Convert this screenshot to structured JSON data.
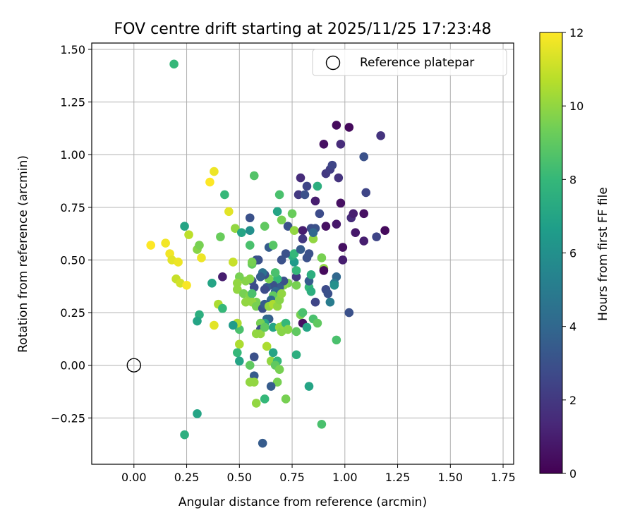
{
  "chart_data": {
    "type": "scatter",
    "title": "FOV centre drift starting at 2025/11/25 17:23:48",
    "xlabel": "Angular distance from reference (arcmin)",
    "ylabel": "Rotation from reference (arcmin)",
    "xlim": [
      -0.2,
      1.8
    ],
    "ylim": [
      -0.47,
      1.53
    ],
    "xticks": [
      0.0,
      0.25,
      0.5,
      0.75,
      1.0,
      1.25,
      1.5,
      1.75
    ],
    "xtick_labels": [
      "0.00",
      "0.25",
      "0.50",
      "0.75",
      "1.00",
      "1.25",
      "1.50",
      "1.75"
    ],
    "yticks": [
      -0.25,
      0.0,
      0.25,
      0.5,
      0.75,
      1.0,
      1.25,
      1.5
    ],
    "ytick_labels": [
      "−0.25",
      "0.00",
      "0.25",
      "0.50",
      "0.75",
      "1.00",
      "1.25",
      "1.50"
    ],
    "grid": true,
    "legend": {
      "position": "top-right",
      "label": "Reference platepar",
      "marker": "open-circle"
    },
    "reference_point": {
      "x": 0.0,
      "y": 0.0
    },
    "colorbar": {
      "label": "Hours from first FF file",
      "colormap": "viridis",
      "range": [
        0,
        12
      ],
      "ticks": [
        0,
        2,
        4,
        6,
        8,
        10,
        12
      ],
      "tick_labels": [
        "0",
        "2",
        "4",
        "6",
        "8",
        "10",
        "12"
      ]
    },
    "colors": {
      "viridis": [
        "#440154",
        "#482878",
        "#3e4989",
        "#31688e",
        "#26828e",
        "#1f9e89",
        "#35b779",
        "#6ece58",
        "#b5de2b",
        "#fde725"
      ],
      "grid": "#b0b0b0",
      "legend_border": "#cccccc"
    },
    "series": [
      {
        "name": "FOV centre",
        "points": [
          [
            0.19,
            1.43,
            8.0
          ],
          [
            0.08,
            0.57,
            12.0
          ],
          [
            0.15,
            0.58,
            11.8
          ],
          [
            0.17,
            0.53,
            11.8
          ],
          [
            0.18,
            0.5,
            11.5
          ],
          [
            0.21,
            0.49,
            11.7
          ],
          [
            0.2,
            0.41,
            11.0
          ],
          [
            0.22,
            0.39,
            11.2
          ],
          [
            0.25,
            0.38,
            11.9
          ],
          [
            0.26,
            0.62,
            10.8
          ],
          [
            0.24,
            0.66,
            7.0
          ],
          [
            0.3,
            0.55,
            9.8
          ],
          [
            0.32,
            0.51,
            11.7
          ],
          [
            0.31,
            0.57,
            9.5
          ],
          [
            0.36,
            0.87,
            12.0
          ],
          [
            0.38,
            0.92,
            11.7
          ],
          [
            0.43,
            0.81,
            8.0
          ],
          [
            0.45,
            0.73,
            11.5
          ],
          [
            0.41,
            0.61,
            9.2
          ],
          [
            0.48,
            0.65,
            10.0
          ],
          [
            0.51,
            0.63,
            7.0
          ],
          [
            0.55,
            0.7,
            3.0
          ],
          [
            0.57,
            0.9,
            8.7
          ],
          [
            0.62,
            0.66,
            9.0
          ],
          [
            0.55,
            0.64,
            6.0
          ],
          [
            0.55,
            0.57,
            8.5
          ],
          [
            0.56,
            0.48,
            9.0
          ],
          [
            0.59,
            0.5,
            3.0
          ],
          [
            0.64,
            0.56,
            3.5
          ],
          [
            0.66,
            0.57,
            8.8
          ],
          [
            0.68,
            0.73,
            7.0
          ],
          [
            0.69,
            0.81,
            8.5
          ],
          [
            0.7,
            0.69,
            9.5
          ],
          [
            0.73,
            0.66,
            3.0
          ],
          [
            0.75,
            0.72,
            9.2
          ],
          [
            0.76,
            0.64,
            10.0
          ],
          [
            0.78,
            0.81,
            2.0
          ],
          [
            0.79,
            0.89,
            1.5
          ],
          [
            0.81,
            0.81,
            3.0
          ],
          [
            0.82,
            0.85,
            2.5
          ],
          [
            0.84,
            0.65,
            2.8
          ],
          [
            0.8,
            0.64,
            1.0
          ],
          [
            0.86,
            0.65,
            3.0
          ],
          [
            0.86,
            0.78,
            1.0
          ],
          [
            0.88,
            0.72,
            2.8
          ],
          [
            0.87,
            0.85,
            7.5
          ],
          [
            0.9,
            1.05,
            0.5
          ],
          [
            0.91,
            0.91,
            2.0
          ],
          [
            0.93,
            0.93,
            2.2
          ],
          [
            0.94,
            0.95,
            2.5
          ],
          [
            0.96,
            1.14,
            0.3
          ],
          [
            0.97,
            0.89,
            1.8
          ],
          [
            0.98,
            1.05,
            1.5
          ],
          [
            1.02,
            1.13,
            0.3
          ],
          [
            0.98,
            0.77,
            0.5
          ],
          [
            0.96,
            0.67,
            0.8
          ],
          [
            0.91,
            0.66,
            0.5
          ],
          [
            1.03,
            0.7,
            1.5
          ],
          [
            1.04,
            0.72,
            1.0
          ],
          [
            1.05,
            0.63,
            0.8
          ],
          [
            1.09,
            0.99,
            3.0
          ],
          [
            1.09,
            0.72,
            0.5
          ],
          [
            1.1,
            0.82,
            2.5
          ],
          [
            1.09,
            0.59,
            1.0
          ],
          [
            1.17,
            1.09,
            1.8
          ],
          [
            1.15,
            0.61,
            2.5
          ],
          [
            1.19,
            0.64,
            0.3
          ],
          [
            0.99,
            0.56,
            0.5
          ],
          [
            0.99,
            0.5,
            1.0
          ],
          [
            0.89,
            0.51,
            9.5
          ],
          [
            0.9,
            0.46,
            10.0
          ],
          [
            0.9,
            0.45,
            0.3
          ],
          [
            0.96,
            0.42,
            4.0
          ],
          [
            0.95,
            0.39,
            5.0
          ],
          [
            0.95,
            0.38,
            6.0
          ],
          [
            0.91,
            0.36,
            2.8
          ],
          [
            0.92,
            0.34,
            3.0
          ],
          [
            0.93,
            0.3,
            5.0
          ],
          [
            1.02,
            0.25,
            3.0
          ],
          [
            0.96,
            0.12,
            8.5
          ],
          [
            0.89,
            -0.28,
            8.5
          ],
          [
            0.83,
            -0.1,
            7.0
          ],
          [
            0.77,
            0.05,
            7.5
          ],
          [
            0.83,
            0.37,
            8.0
          ],
          [
            0.83,
            0.4,
            3.5
          ],
          [
            0.84,
            0.43,
            7.5
          ],
          [
            0.84,
            0.35,
            7.5
          ],
          [
            0.86,
            0.3,
            2.5
          ],
          [
            0.85,
            0.22,
            8.5
          ],
          [
            0.87,
            0.2,
            9.0
          ],
          [
            0.8,
            0.2,
            0.5
          ],
          [
            0.82,
            0.18,
            7.0
          ],
          [
            0.79,
            0.24,
            9.5
          ],
          [
            0.8,
            0.25,
            8.5
          ],
          [
            0.77,
            0.16,
            9.0
          ],
          [
            0.77,
            0.38,
            9.5
          ],
          [
            0.77,
            0.42,
            2.0
          ],
          [
            0.77,
            0.45,
            8.0
          ],
          [
            0.76,
            0.49,
            6.5
          ],
          [
            0.75,
            0.52,
            7.5
          ],
          [
            0.72,
            0.53,
            3.0
          ],
          [
            0.7,
            0.5,
            3.0
          ],
          [
            0.76,
            0.53,
            8.0
          ],
          [
            0.79,
            0.55,
            3.5
          ],
          [
            0.8,
            0.6,
            2.0
          ],
          [
            0.82,
            0.51,
            3.0
          ],
          [
            0.83,
            0.53,
            3.0
          ],
          [
            0.85,
            0.6,
            10.0
          ],
          [
            0.85,
            0.63,
            4.0
          ],
          [
            0.73,
            0.39,
            9.5
          ],
          [
            0.71,
            0.38,
            9.8
          ],
          [
            0.71,
            0.4,
            3.0
          ],
          [
            0.69,
            0.37,
            3.5
          ],
          [
            0.68,
            0.41,
            8.0
          ],
          [
            0.67,
            0.44,
            8.5
          ],
          [
            0.66,
            0.38,
            3.0
          ],
          [
            0.67,
            0.35,
            4.0
          ],
          [
            0.66,
            0.33,
            9.0
          ],
          [
            0.65,
            0.31,
            4.0
          ],
          [
            0.63,
            0.37,
            3.5
          ],
          [
            0.62,
            0.36,
            2.8
          ],
          [
            0.64,
            0.41,
            9.5
          ],
          [
            0.62,
            0.43,
            3.0
          ],
          [
            0.61,
            0.44,
            4.5
          ],
          [
            0.6,
            0.42,
            3.5
          ],
          [
            0.58,
            0.5,
            3.0
          ],
          [
            0.56,
            0.49,
            9.5
          ],
          [
            0.56,
            0.4,
            3.0
          ],
          [
            0.57,
            0.37,
            2.8
          ],
          [
            0.55,
            0.41,
            9.8
          ],
          [
            0.53,
            0.4,
            9.8
          ],
          [
            0.5,
            0.42,
            9.5
          ],
          [
            0.49,
            0.39,
            10.0
          ],
          [
            0.49,
            0.36,
            10.0
          ],
          [
            0.52,
            0.34,
            9.5
          ],
          [
            0.55,
            0.33,
            9.8
          ],
          [
            0.56,
            0.34,
            8.5
          ],
          [
            0.58,
            0.3,
            9.5
          ],
          [
            0.56,
            0.3,
            10.0
          ],
          [
            0.53,
            0.3,
            10.0
          ],
          [
            0.58,
            0.28,
            9.5
          ],
          [
            0.61,
            0.27,
            3.0
          ],
          [
            0.62,
            0.29,
            3.5
          ],
          [
            0.64,
            0.28,
            10.0
          ],
          [
            0.66,
            0.29,
            10.5
          ],
          [
            0.68,
            0.28,
            10.0
          ],
          [
            0.69,
            0.31,
            9.8
          ],
          [
            0.7,
            0.34,
            10.0
          ],
          [
            0.64,
            0.22,
            3.5
          ],
          [
            0.63,
            0.22,
            4.0
          ],
          [
            0.62,
            0.2,
            7.0
          ],
          [
            0.6,
            0.2,
            9.5
          ],
          [
            0.6,
            0.17,
            3.0
          ],
          [
            0.58,
            0.15,
            10.0
          ],
          [
            0.6,
            0.15,
            10.0
          ],
          [
            0.62,
            0.18,
            9.0
          ],
          [
            0.66,
            0.18,
            7.0
          ],
          [
            0.69,
            0.18,
            10.0
          ],
          [
            0.7,
            0.16,
            9.8
          ],
          [
            0.71,
            0.19,
            10.0
          ],
          [
            0.72,
            0.2,
            8.0
          ],
          [
            0.73,
            0.17,
            9.8
          ],
          [
            0.63,
            0.09,
            10.5
          ],
          [
            0.65,
            0.02,
            10.0
          ],
          [
            0.66,
            0.06,
            7.0
          ],
          [
            0.68,
            0.02,
            8.0
          ],
          [
            0.67,
            0.0,
            9.0
          ],
          [
            0.69,
            -0.02,
            9.5
          ],
          [
            0.68,
            -0.08,
            9.5
          ],
          [
            0.65,
            -0.1,
            3.5
          ],
          [
            0.62,
            -0.16,
            8.0
          ],
          [
            0.58,
            -0.18,
            10.0
          ],
          [
            0.57,
            -0.05,
            3.5
          ],
          [
            0.57,
            -0.08,
            10.0
          ],
          [
            0.55,
            -0.08,
            10.0
          ],
          [
            0.55,
            0.0,
            9.0
          ],
          [
            0.57,
            0.04,
            3.0
          ],
          [
            0.5,
            0.1,
            10.5
          ],
          [
            0.49,
            0.06,
            8.0
          ],
          [
            0.5,
            0.02,
            7.0
          ],
          [
            0.5,
            0.17,
            8.5
          ],
          [
            0.49,
            0.2,
            10.5
          ],
          [
            0.47,
            0.19,
            6.5
          ],
          [
            0.38,
            0.19,
            11.5
          ],
          [
            0.4,
            0.29,
            10.5
          ],
          [
            0.42,
            0.27,
            8.0
          ],
          [
            0.37,
            0.39,
            7.0
          ],
          [
            0.47,
            0.49,
            11.0
          ],
          [
            0.31,
            0.24,
            7.5
          ],
          [
            0.3,
            0.21,
            7.0
          ],
          [
            0.3,
            -0.23,
            7.0
          ],
          [
            0.24,
            -0.33,
            7.5
          ],
          [
            0.61,
            -0.37,
            3.5
          ],
          [
            0.72,
            -0.16,
            9.5
          ],
          [
            0.42,
            0.42,
            1.0
          ]
        ]
      }
    ]
  }
}
